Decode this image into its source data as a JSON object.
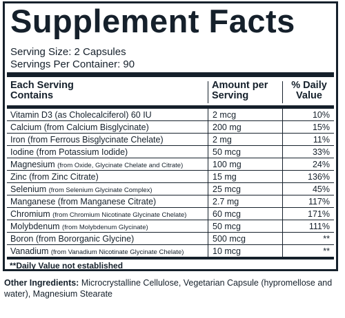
{
  "title": "Supplement Facts",
  "serving_size": "Serving Size: 2 Capsules",
  "servings_per_container": "Servings Per Container: 90",
  "headers": {
    "contains_line1": "Each Serving",
    "contains_line2": "Contains",
    "amount_line1": "Amount per",
    "amount_line2": "Serving",
    "dv_line1": "% Daily",
    "dv_line2": "Value"
  },
  "rows": [
    {
      "name": "Vitamin D3 (as Cholecalciferol) 60 IU",
      "detail": "",
      "amount": "2 mcg",
      "dv": "10%"
    },
    {
      "name": "Calcium (from Calcium Bisglycinate)",
      "detail": "",
      "amount": "200 mg",
      "dv": "15%"
    },
    {
      "name": "Iron (from Ferrous Bisglycinate Chelate)",
      "detail": "",
      "amount": "2 mg",
      "dv": "11%"
    },
    {
      "name": "Iodine (from Potassium Iodide)",
      "detail": "",
      "amount": "50 mcg",
      "dv": "33%"
    },
    {
      "name": "Magnesium ",
      "detail": "(from Oxide, Glycinate Chelate and Citrate)",
      "amount": "100 mg",
      "dv": "24%"
    },
    {
      "name": "Zinc (from Zinc Citrate)",
      "detail": "",
      "amount": "15 mg",
      "dv": "136%"
    },
    {
      "name": "Selenium ",
      "detail": "(from Selenium Glycinate Complex)",
      "amount": "25 mcg",
      "dv": "45%"
    },
    {
      "name": "Manganese (from Manganese Citrate)",
      "detail": "",
      "amount": "2.7 mg",
      "dv": "117%"
    },
    {
      "name": "Chromium ",
      "detail": "(from Chromium Nicotinate Glycinate Chelate)",
      "amount": "60 mcg",
      "dv": "171%"
    },
    {
      "name": "Molybdenum ",
      "detail": "(from Molybdenum Glycinate)",
      "amount": "50 mcg",
      "dv": "111%"
    },
    {
      "name": "Boron (from Bororganic Glycine)",
      "detail": "",
      "amount": "500 mcg",
      "dv": "**"
    },
    {
      "name": "Vanadium ",
      "detail": "(from Vanadium Nicotinate Glycinate Chelate)",
      "amount": "10 mcg",
      "dv": "**"
    }
  ],
  "footnote": "**Daily Value not established",
  "other_ingredients_label": "Other Ingredients:",
  "other_ingredients_text": " Microcrystalline Cellulose, Vegetarian Capsule (hypromellose and water), Magnesium Stearate"
}
